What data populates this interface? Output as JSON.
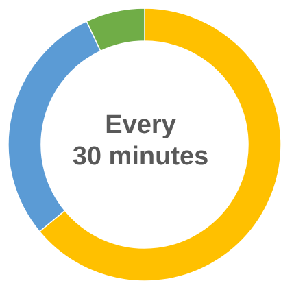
{
  "chart_data": {
    "type": "pie",
    "subtype": "donut",
    "center_text": [
      "Every",
      "30 minutes"
    ],
    "slices": [
      {
        "value": 0.64,
        "color": "#FFC000"
      },
      {
        "value": 0.29,
        "color": "#5B9BD5"
      },
      {
        "value": 0.07,
        "color": "#70AD47"
      }
    ],
    "start_angle_deg": 0,
    "direction": "clockwise",
    "separator_color": "#FFFFFF"
  }
}
